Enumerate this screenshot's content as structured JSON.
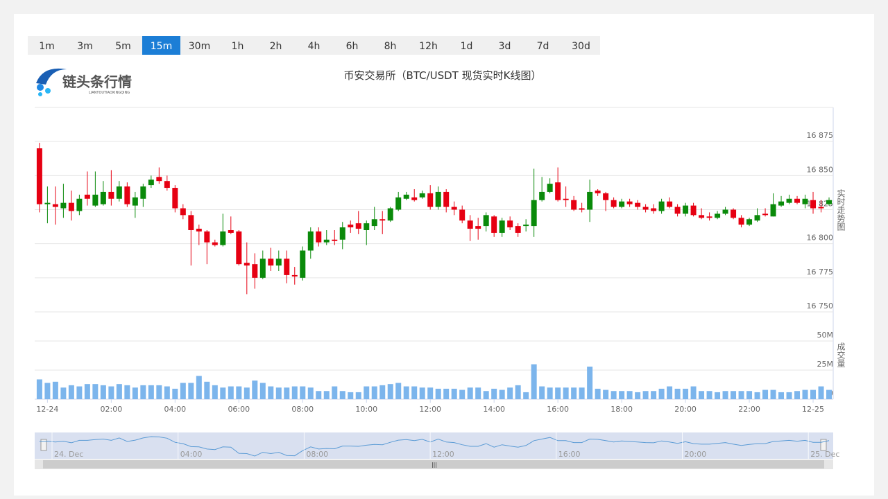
{
  "timeframes": {
    "options": [
      "1m",
      "3m",
      "5m",
      "15m",
      "30m",
      "1h",
      "2h",
      "4h",
      "6h",
      "8h",
      "12h",
      "1d",
      "3d",
      "7d",
      "30d"
    ],
    "selected": 3
  },
  "logo": {
    "name": "链头条行情",
    "subtitle": "LIANTOUTIAOXINGQING"
  },
  "chart_data": {
    "type": "candlestick",
    "title": "币安交易所（BTC/USDT 现货实时K线图）",
    "ylabel": "实时走势图",
    "volume_label": "成交量",
    "x": [
      -0.25,
      0,
      0.25,
      0.5,
      0.75,
      1,
      1.25,
      1.5,
      1.75,
      2,
      2.25,
      2.5,
      2.75,
      3,
      3.25,
      3.5,
      3.75,
      4,
      4.25,
      4.5,
      4.75,
      5,
      5.25,
      5.5,
      5.75,
      6,
      6.25,
      6.5,
      6.75,
      7,
      7.25,
      7.5,
      7.75,
      8,
      8.25,
      8.5,
      8.75,
      9,
      9.25,
      9.5,
      9.75,
      10,
      10.25,
      10.5,
      10.75,
      11,
      11.25,
      11.5,
      11.75,
      12,
      12.25,
      12.5,
      12.75,
      13,
      13.25,
      13.5,
      13.75,
      14,
      14.25,
      14.5,
      14.75,
      15,
      15.25,
      15.5,
      15.75,
      16,
      16.25,
      16.5,
      16.75,
      17,
      17.25,
      17.5,
      17.75,
      18,
      18.25,
      18.5,
      18.75,
      19,
      19.25,
      19.5,
      19.75,
      20,
      20.25,
      20.5,
      20.75,
      21,
      21.25,
      21.5,
      21.75,
      22,
      22.25,
      22.5,
      22.75,
      23,
      23.25,
      23.5,
      23.75,
      24,
      24.25,
      24.5
    ],
    "open": [
      16870,
      16829,
      16829,
      16826,
      16830,
      16824,
      16836,
      16828,
      16829,
      16838,
      16833,
      16842,
      16828,
      16833,
      16843,
      16849,
      16846,
      16841,
      16826,
      16821,
      16811,
      16809,
      16801,
      16799,
      16810,
      16809,
      16786,
      16785,
      16775,
      16789,
      16784,
      16789,
      16777,
      16775,
      16795,
      16809,
      16801,
      16803,
      16803,
      16814,
      16815,
      16810,
      16813,
      16818,
      16817,
      16825,
      16833,
      16834,
      16834,
      16837,
      16827,
      16838,
      16827,
      16825,
      16817,
      16813,
      16813,
      16820,
      16808,
      16817,
      16813,
      16813,
      16813,
      16832,
      16838,
      16845,
      16833,
      16832,
      16826,
      16825,
      16839,
      16837,
      16832,
      16827,
      16831,
      16830,
      16827,
      16826,
      16824,
      16831,
      16827,
      16822,
      16828,
      16821,
      16820,
      16819,
      16822,
      16825,
      16819,
      16814,
      16817,
      16822,
      16820,
      16828,
      16830,
      16833,
      16829,
      16832,
      16827,
      16829
    ],
    "high": [
      16874,
      16842,
      16842,
      16844,
      16839,
      16836,
      16853,
      16853,
      16846,
      16854,
      16846,
      16845,
      16838,
      16844,
      16850,
      16856,
      16850,
      16843,
      16829,
      16824,
      16814,
      16810,
      16803,
      16822,
      16820,
      16810,
      16801,
      16793,
      16795,
      16797,
      16795,
      16795,
      16783,
      16798,
      16812,
      16812,
      16810,
      16810,
      16816,
      16817,
      16824,
      16817,
      16827,
      16824,
      16827,
      16838,
      16838,
      16840,
      16839,
      16843,
      16842,
      16840,
      16831,
      16828,
      16821,
      16819,
      16823,
      16821,
      16819,
      16820,
      16815,
      16818,
      16855,
      16849,
      16848,
      16856,
      16842,
      16835,
      16830,
      16847,
      16840,
      16838,
      16834,
      16833,
      16833,
      16832,
      16829,
      16829,
      16833,
      16834,
      16829,
      16830,
      16830,
      16826,
      16823,
      16824,
      16827,
      16826,
      16821,
      16819,
      16826,
      16826,
      16837,
      16835,
      16836,
      16835,
      16836,
      16838,
      16832,
      16834
    ],
    "low": [
      16823,
      16815,
      16814,
      16819,
      16817,
      16821,
      16828,
      16827,
      16828,
      16828,
      16831,
      16827,
      16819,
      16827,
      16841,
      16844,
      16839,
      16823,
      16818,
      16784,
      16799,
      16785,
      16798,
      16798,
      16807,
      16784,
      16763,
      16767,
      16774,
      16780,
      16780,
      16771,
      16770,
      16773,
      16789,
      16798,
      16799,
      16799,
      16796,
      16808,
      16807,
      16799,
      16810,
      16807,
      16816,
      16824,
      16832,
      16831,
      16833,
      16825,
      16825,
      16823,
      16821,
      16815,
      16802,
      16803,
      16809,
      16805,
      16805,
      16810,
      16805,
      16809,
      16805,
      16831,
      16837,
      16831,
      16827,
      16824,
      16823,
      16816,
      16835,
      16824,
      16826,
      16826,
      16827,
      16825,
      16823,
      16822,
      16822,
      16826,
      16820,
      16820,
      16820,
      16818,
      16817,
      16818,
      16821,
      16818,
      16812,
      16813,
      16816,
      16820,
      16820,
      16827,
      16829,
      16829,
      16826,
      16822,
      16823,
      16828
    ],
    "close": [
      16829,
      16830,
      16827,
      16830,
      16824,
      16833,
      16833,
      16836,
      16838,
      16833,
      16842,
      16829,
      16834,
      16842,
      16847,
      16846,
      16841,
      16826,
      16821,
      16810,
      16809,
      16801,
      16799,
      16809,
      16808,
      16785,
      16784,
      16775,
      16789,
      16784,
      16789,
      16777,
      16776,
      16795,
      16809,
      16801,
      16803,
      16802,
      16812,
      16812,
      16811,
      16815,
      16818,
      16817,
      16826,
      16834,
      16836,
      16832,
      16837,
      16827,
      16838,
      16827,
      16825,
      16817,
      16811,
      16811,
      16821,
      16808,
      16817,
      16812,
      16808,
      16814,
      16832,
      16838,
      16844,
      16832,
      16832,
      16825,
      16825,
      16838,
      16837,
      16832,
      16827,
      16831,
      16829,
      16827,
      16825,
      16824,
      16831,
      16827,
      16822,
      16828,
      16821,
      16819,
      16819,
      16822,
      16825,
      16819,
      16814,
      16818,
      16821,
      16821,
      16829,
      16831,
      16833,
      16830,
      16833,
      16826,
      16826,
      16832
    ],
    "volume": [
      17,
      14,
      15,
      10,
      12,
      11,
      13,
      13,
      12,
      11,
      13,
      12,
      10,
      12,
      12,
      12,
      11,
      9,
      14,
      14,
      20,
      15,
      12,
      10,
      11,
      11,
      10,
      16,
      14,
      11,
      10,
      10,
      11,
      11,
      10,
      7,
      7,
      11,
      7,
      6,
      6,
      11,
      11,
      12,
      13,
      14,
      11,
      11,
      10,
      10,
      9,
      9,
      9,
      8,
      10,
      10,
      7,
      9,
      8,
      10,
      12,
      6,
      30,
      11,
      10,
      10,
      10,
      10,
      10,
      28,
      9,
      8,
      7,
      7,
      7,
      6,
      7,
      7,
      9,
      11,
      9,
      9,
      11,
      7,
      7,
      6,
      7,
      7,
      7,
      7,
      6,
      8,
      8,
      6,
      6,
      7,
      8,
      8,
      11,
      8
    ],
    "up_color": "#0a8a0a",
    "down_color": "#e60012",
    "volume_color": "#7cb5ec",
    "xlim": [
      -0.4,
      24.63
    ],
    "xticks": [
      {
        "value": 0,
        "label": "12-24"
      },
      {
        "value": 2,
        "label": "02:00"
      },
      {
        "value": 4,
        "label": "04:00"
      },
      {
        "value": 6,
        "label": "06:00"
      },
      {
        "value": 8,
        "label": "08:00"
      },
      {
        "value": 10,
        "label": "10:00"
      },
      {
        "value": 12,
        "label": "12:00"
      },
      {
        "value": 14,
        "label": "14:00"
      },
      {
        "value": 16,
        "label": "16:00"
      },
      {
        "value": 18,
        "label": "18:00"
      },
      {
        "value": 20,
        "label": "20:00"
      },
      {
        "value": 22,
        "label": "22:00"
      },
      {
        "value": 24,
        "label": "12-25"
      }
    ],
    "ylim": [
      16750,
      16900
    ],
    "yticks": [
      {
        "value": 16750,
        "label": "16 750"
      },
      {
        "value": 16775,
        "label": "16 775"
      },
      {
        "value": 16800,
        "label": "16 800"
      },
      {
        "value": 16825,
        "label": "16 825"
      },
      {
        "value": 16850,
        "label": "16 850"
      },
      {
        "value": 16875,
        "label": "16 875"
      }
    ],
    "volume_ylim": [
      0,
      50
    ],
    "volume_yticks": [
      0,
      {
        "value": 25,
        "label": "25M"
      },
      {
        "value": 50,
        "label": "50M"
      }
    ],
    "grid": true
  },
  "navigator": {
    "labels": [
      "24. Dec",
      "04:00",
      "08:00",
      "12:00",
      "16:00",
      "20:00",
      "25. Dec"
    ]
  }
}
